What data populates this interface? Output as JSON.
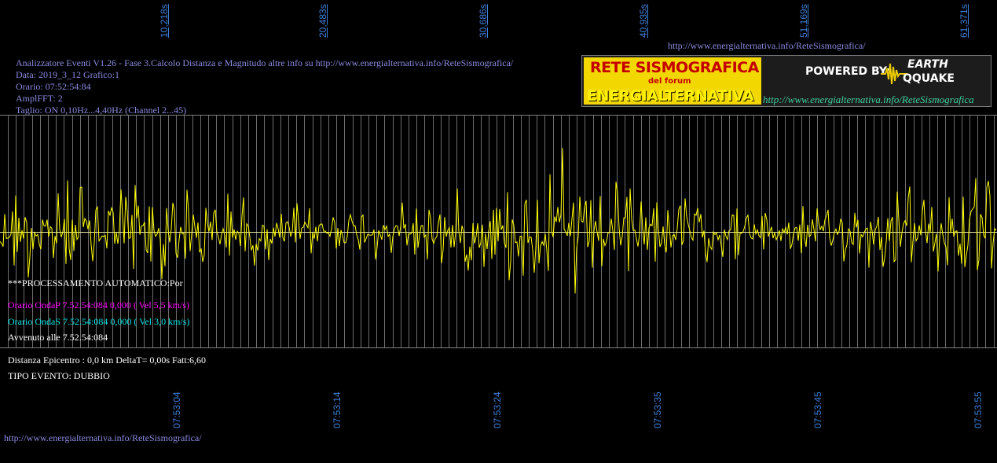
{
  "time_axis_top": [
    "10,218s",
    "20,483s",
    "30,686s",
    "40,935s",
    "51,169s",
    "61,371s"
  ],
  "time_axis_bottom": [
    "07:53:04",
    "07:53:14",
    "07:53:24",
    "07:53:35",
    "07:53:45",
    "07:53:55"
  ],
  "url_top": "http://www.energialternativa.info/ReteSismografica/",
  "url_bottom": "http://www.energialternativa.info/ReteSismografica/",
  "info": {
    "line1": "Analizzatore Eventi V1.26 - Fase 3.Calcolo Distanza e Magnitudo altre info su http://www.energialternativa.info/ReteSismografica/",
    "line2": "Data: 2019_3_12 Grafico:1",
    "line3": "Orario: 07:52:54:84",
    "line4": "AmplFFT: 2",
    "line5": "Taglio: ON 0,10Hz...4,40Hz       (Channel 2...45)"
  },
  "logo": {
    "title1": "RETE SISMOGRAFICA",
    "title2": "del forum",
    "title3": "ENERGIALTERNATIVA",
    "powered": "POWERED BY:",
    "brand1": "EARTH",
    "brand2": "QQUAKE",
    "url": "http://www.energialternativa.info/ReteSismografica"
  },
  "processing": {
    "header": "***PROCESSAMENTO AUTOMATICO:Por",
    "onda_p": "Orario OndaP 7.52.54:084  0,000 ( Vel 5,5 km/s)",
    "onda_s": "Orario OndaS 7.52.54:084  0,000 ( Vel 3,0 km/s)",
    "avvenuto": "Avvenuto alle 7.52.54:084"
  },
  "result": {
    "distanza": "Distanza Epicentro : 0,0 km DeltaT= 0,00s  Fatt:6,60",
    "tipo": "TIPO EVENTO: DUBBIO"
  },
  "colors": {
    "signal": "#ffff00",
    "grid": "#6e6e6e",
    "axis_text": "#3f7fd8",
    "onda_p": "#ff00ff",
    "onda_s": "#00e5e5",
    "info_text": "#8a8ae0"
  }
}
